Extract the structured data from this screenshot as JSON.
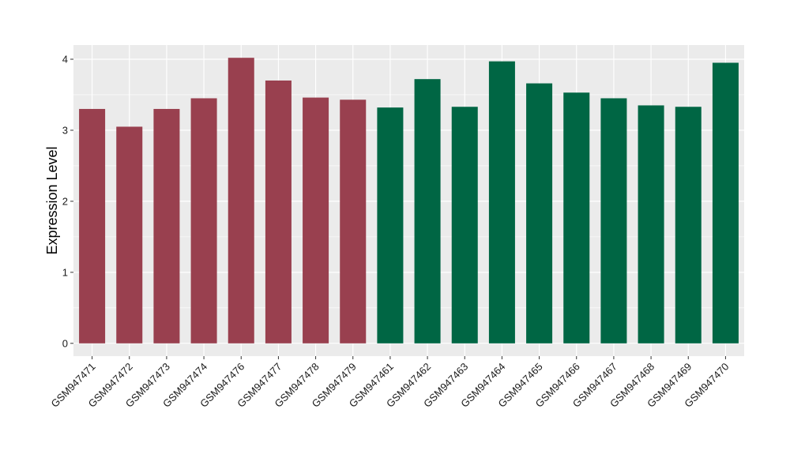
{
  "chart_data": {
    "type": "bar",
    "title": "",
    "xlabel": "",
    "ylabel": "Expression Level",
    "ylim": [
      -0.18,
      4.2
    ],
    "yticks": [
      0,
      1,
      2,
      3,
      4
    ],
    "grid": true,
    "background_color": "#ebebeb",
    "grid_color": "#ffffff",
    "categories": [
      "GSM947471",
      "GSM947472",
      "GSM947473",
      "GSM947474",
      "GSM947476",
      "GSM947477",
      "GSM947478",
      "GSM947479",
      "GSM947461",
      "GSM947462",
      "GSM947463",
      "GSM947464",
      "GSM947465",
      "GSM947466",
      "GSM947467",
      "GSM947468",
      "GSM947469",
      "GSM947470"
    ],
    "values": [
      3.3,
      3.05,
      3.3,
      3.45,
      4.02,
      3.7,
      3.46,
      3.43,
      3.32,
      3.72,
      3.33,
      3.97,
      3.66,
      3.53,
      3.45,
      3.35,
      3.33,
      3.95
    ],
    "bar_colors": [
      "#99404f",
      "#99404f",
      "#99404f",
      "#99404f",
      "#99404f",
      "#99404f",
      "#99404f",
      "#99404f",
      "#006644",
      "#006644",
      "#006644",
      "#006644",
      "#006644",
      "#006644",
      "#006644",
      "#006644",
      "#006644",
      "#006644"
    ]
  }
}
